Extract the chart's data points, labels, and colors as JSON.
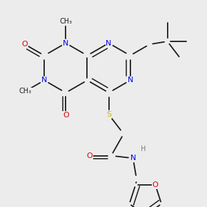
{
  "bg_color": "#ececec",
  "bond_color": "#1a1a1a",
  "bond_width": 1.3,
  "atom_colors": {
    "N": "#0000ee",
    "O": "#dd0000",
    "S": "#bbbb00",
    "H": "#777777",
    "C": "#1a1a1a"
  },
  "font_size": 8.0,
  "font_size_small": 7.0
}
